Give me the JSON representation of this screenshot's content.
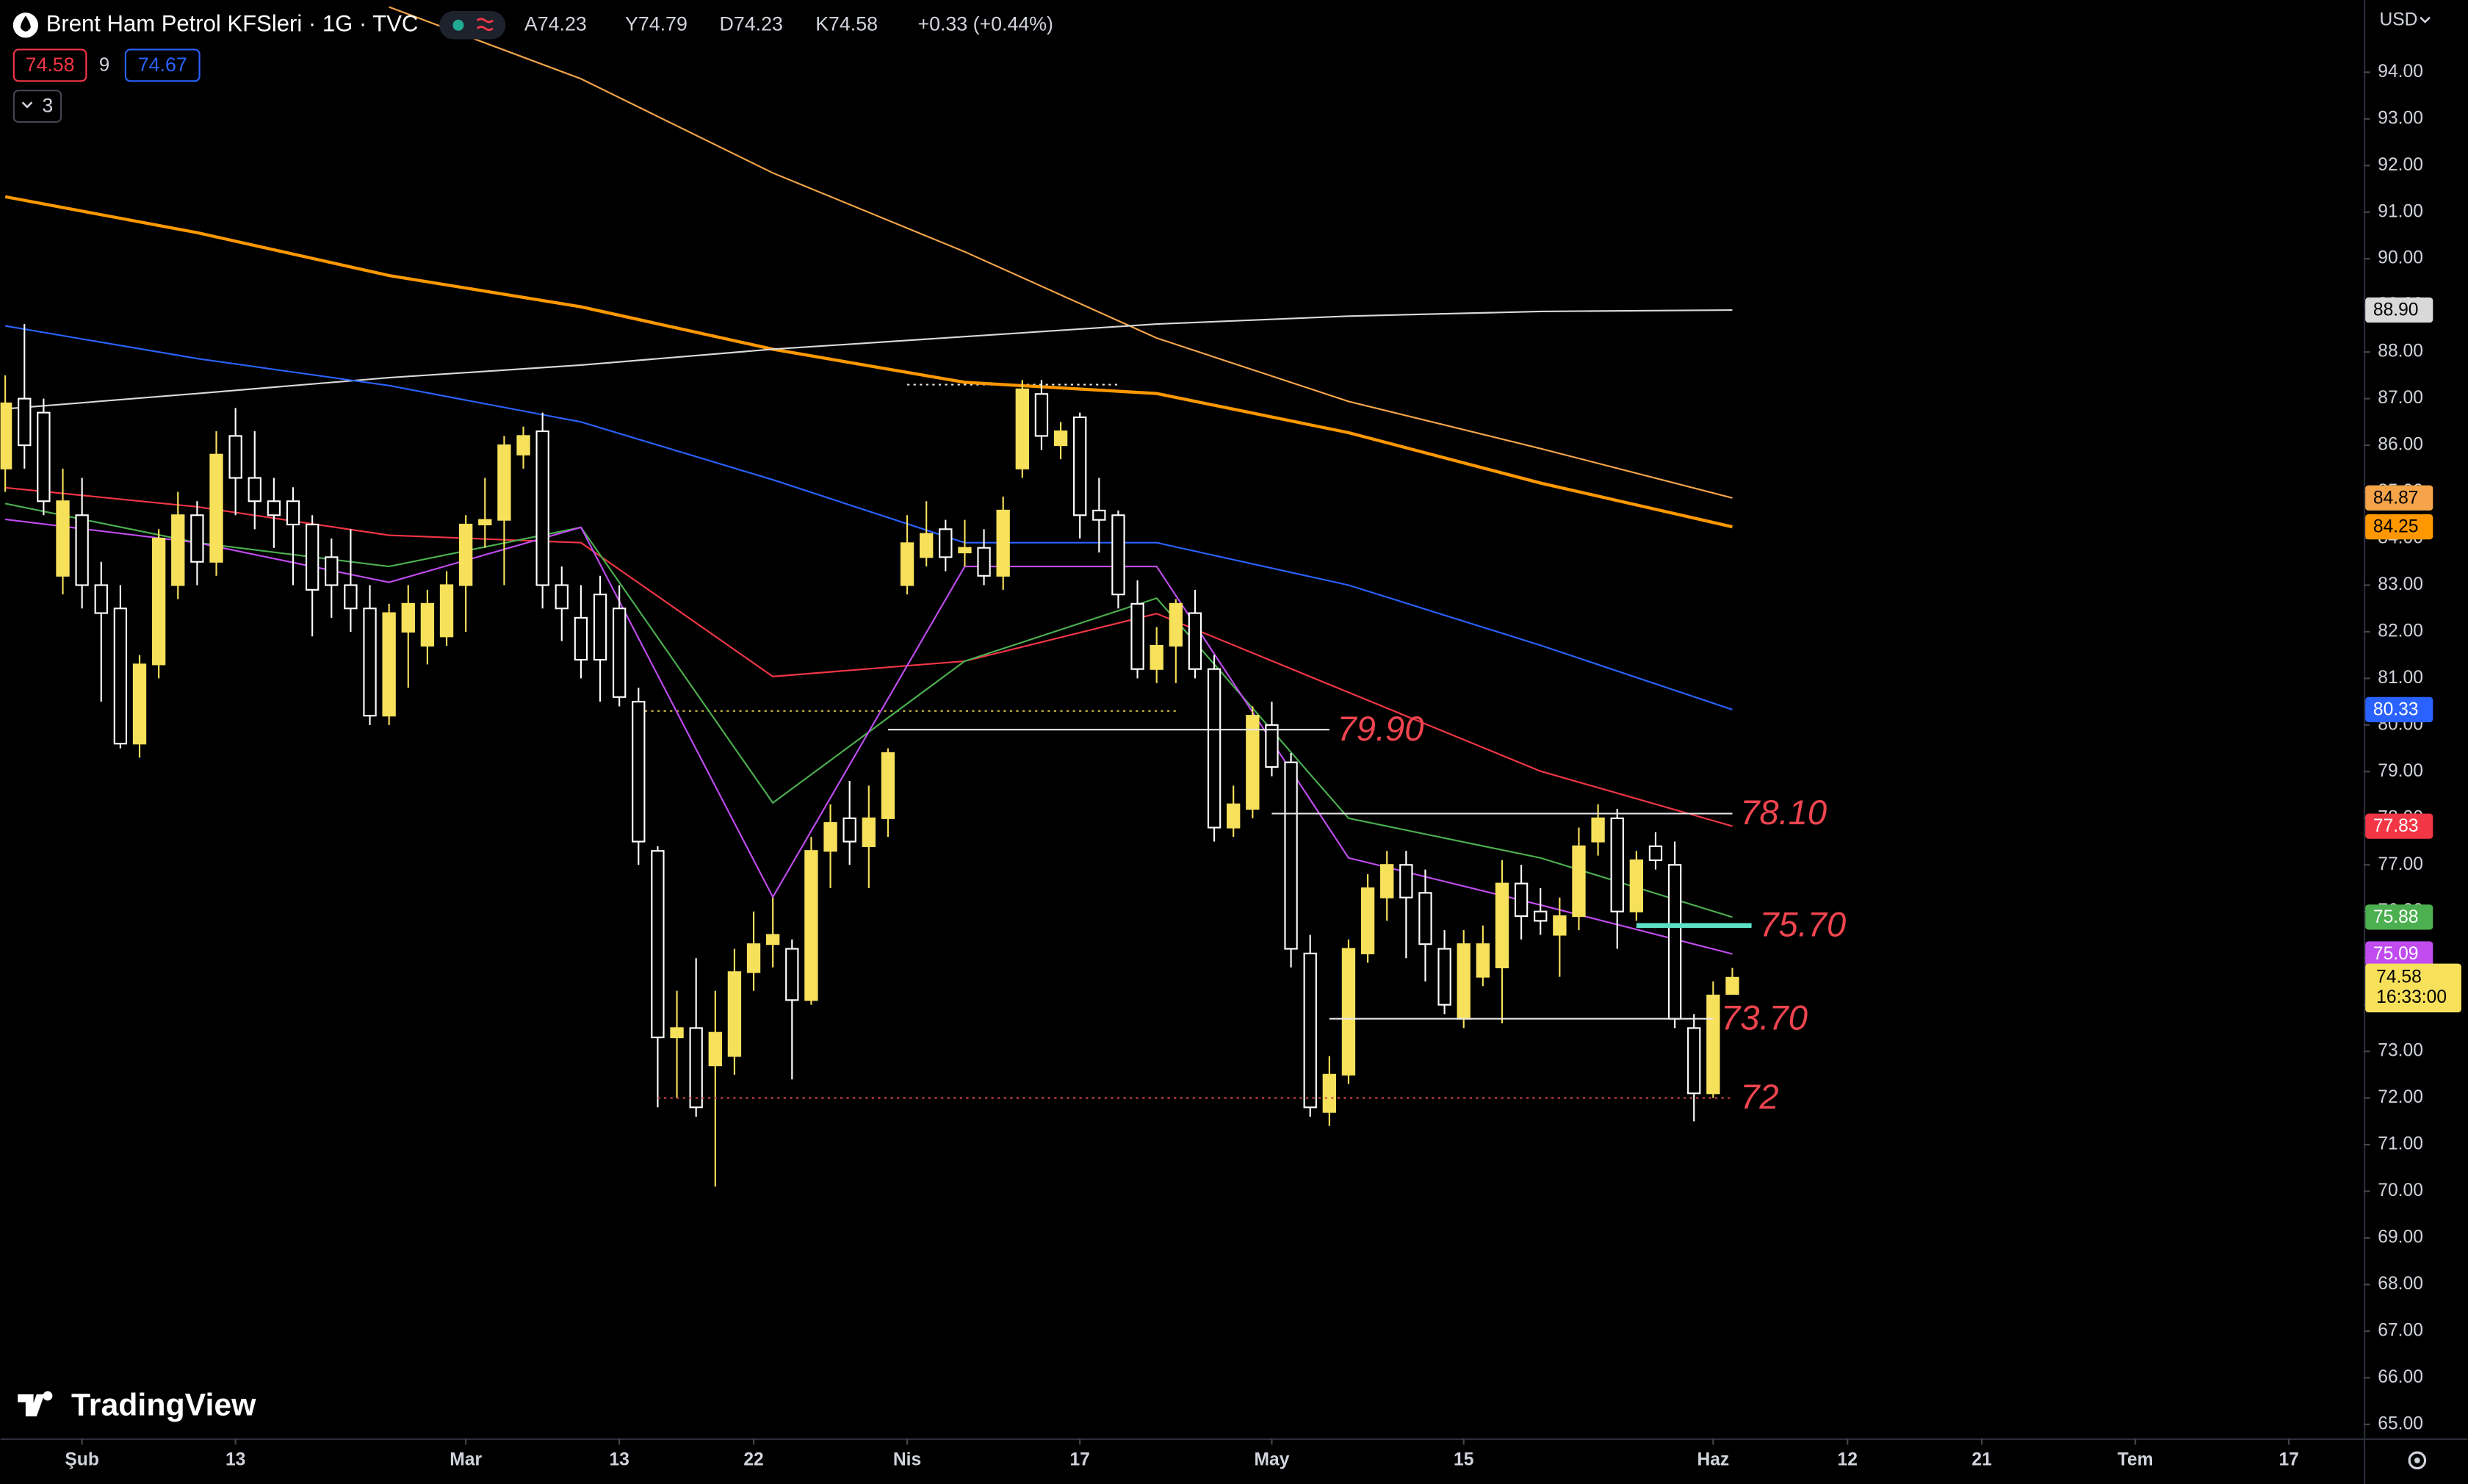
{
  "toolbar": {
    "title": "Brent Ham Petrol KFSleri · 1G · TVC",
    "ohlc": [
      "A74.23",
      "Y74.79",
      "D74.23",
      "K74.58",
      "+0.33 (+0.44%)"
    ],
    "price_box_1": "74.58",
    "period": "9",
    "price_box_2": "74.67",
    "indicator_count": "3",
    "currency": "USD",
    "logo": "TradingView"
  },
  "chart_data": {
    "type": "candlestick",
    "title": "Brent Ham Petrol KFSleri · 1G · TVC",
    "up_color": "#f7e15b",
    "down_color": "#ffffff",
    "x": [
      0,
      1,
      2,
      3,
      4,
      5,
      6,
      7,
      8,
      9,
      10,
      11,
      12,
      13,
      14,
      15,
      16,
      17,
      18,
      19,
      20,
      21,
      22,
      23,
      24,
      25,
      26,
      27,
      28,
      29,
      30,
      31,
      32,
      33,
      34,
      35,
      36,
      37,
      38,
      39,
      40,
      41,
      42,
      43,
      44,
      45,
      46,
      47,
      48,
      49,
      50,
      51,
      52,
      53,
      54,
      55,
      56,
      57,
      58,
      59,
      60,
      61,
      62,
      63,
      64,
      65,
      66,
      67,
      68,
      69,
      70,
      71,
      72,
      73,
      74,
      75,
      76,
      77,
      78,
      79,
      80,
      81,
      82,
      83,
      84,
      85,
      86,
      87,
      88,
      89,
      90
    ],
    "open": [
      85.5,
      87.0,
      86.7,
      83.2,
      84.5,
      83.0,
      82.5,
      79.6,
      81.3,
      83.0,
      84.5,
      83.5,
      86.2,
      85.3,
      84.8,
      84.8,
      84.3,
      83.6,
      83.0,
      82.5,
      80.2,
      82.0,
      81.7,
      81.9,
      83.0,
      84.3,
      84.4,
      85.8,
      86.3,
      83.0,
      82.3,
      82.8,
      82.5,
      80.5,
      77.3,
      73.3,
      73.5,
      72.7,
      72.9,
      74.7,
      75.3,
      75.2,
      74.1,
      77.3,
      78.0,
      77.4,
      78.0,
      83.0,
      83.6,
      84.2,
      83.7,
      83.8,
      83.2,
      85.5,
      87.1,
      86.0,
      86.6,
      84.6,
      84.5,
      82.6,
      81.2,
      81.7,
      82.4,
      81.2,
      77.8,
      78.2,
      80.0,
      79.2,
      75.1,
      71.7,
      72.5,
      75.1,
      76.3,
      77.0,
      76.4,
      75.2,
      73.7,
      74.6,
      74.8,
      76.6,
      76.0,
      75.5,
      75.9,
      77.5,
      78.0,
      76.0,
      77.4,
      77.0,
      73.5,
      72.1,
      74.23
    ],
    "high": [
      87.5,
      88.6,
      87.0,
      85.5,
      85.3,
      83.5,
      83.0,
      81.5,
      84.2,
      85.0,
      84.8,
      86.3,
      86.8,
      86.3,
      85.3,
      85.1,
      84.5,
      84.0,
      84.2,
      83.0,
      82.6,
      83.0,
      82.9,
      83.3,
      84.5,
      85.3,
      86.2,
      86.4,
      86.7,
      83.4,
      83.0,
      83.2,
      83.0,
      80.8,
      77.4,
      74.3,
      75.0,
      74.3,
      75.2,
      76.0,
      76.3,
      75.4,
      77.6,
      78.3,
      78.8,
      78.7,
      79.5,
      84.5,
      84.8,
      84.4,
      84.4,
      84.2,
      84.9,
      87.4,
      87.4,
      86.5,
      86.7,
      85.3,
      84.6,
      83.1,
      82.1,
      82.7,
      82.9,
      81.5,
      78.7,
      80.4,
      80.5,
      79.4,
      75.5,
      72.9,
      75.4,
      76.8,
      77.3,
      77.3,
      76.9,
      75.6,
      75.6,
      75.7,
      77.1,
      77.0,
      76.5,
      76.3,
      77.8,
      78.3,
      78.2,
      77.3,
      77.7,
      77.5,
      73.8,
      74.5,
      74.79
    ],
    "low": [
      85.0,
      85.5,
      84.5,
      82.8,
      82.5,
      80.5,
      79.5,
      79.3,
      81.0,
      82.7,
      83.0,
      83.2,
      84.5,
      84.2,
      83.8,
      83.0,
      81.9,
      82.3,
      82.0,
      80.0,
      80.0,
      80.8,
      81.3,
      81.7,
      82.0,
      83.8,
      83.0,
      85.5,
      82.5,
      81.8,
      81.0,
      80.5,
      80.4,
      77.0,
      71.8,
      72.0,
      71.6,
      70.1,
      72.5,
      74.3,
      74.8,
      72.4,
      74.0,
      76.5,
      77.0,
      76.5,
      77.6,
      82.8,
      83.4,
      83.3,
      83.4,
      83.0,
      82.9,
      85.3,
      85.9,
      85.7,
      84.0,
      83.7,
      82.5,
      81.0,
      80.9,
      80.9,
      81.0,
      77.5,
      77.6,
      78.0,
      78.9,
      74.8,
      71.6,
      71.4,
      72.3,
      74.9,
      75.8,
      75.0,
      74.5,
      73.8,
      73.5,
      74.4,
      73.6,
      75.4,
      75.5,
      74.6,
      75.6,
      77.2,
      75.2,
      75.8,
      76.9,
      73.5,
      71.5,
      72.0,
      74.23
    ],
    "close": [
      86.9,
      86.0,
      84.8,
      84.8,
      83.0,
      82.4,
      79.6,
      81.3,
      84.0,
      84.5,
      83.5,
      85.8,
      85.3,
      84.8,
      84.5,
      84.3,
      82.9,
      83.0,
      82.5,
      80.2,
      82.4,
      82.6,
      82.6,
      83.0,
      84.3,
      84.4,
      86.0,
      86.2,
      83.0,
      82.5,
      81.4,
      81.4,
      80.6,
      77.5,
      73.3,
      73.5,
      71.8,
      73.4,
      74.7,
      75.3,
      75.5,
      74.1,
      77.3,
      77.9,
      77.5,
      78.0,
      79.4,
      83.9,
      84.1,
      83.6,
      83.8,
      83.2,
      84.6,
      87.2,
      86.2,
      86.3,
      84.5,
      84.4,
      82.8,
      81.2,
      81.7,
      82.6,
      81.2,
      77.8,
      78.3,
      80.2,
      79.1,
      75.2,
      71.8,
      72.5,
      75.2,
      76.5,
      77.0,
      76.3,
      75.3,
      74.0,
      75.3,
      75.3,
      76.6,
      75.9,
      75.8,
      75.9,
      77.4,
      78.0,
      76.0,
      77.1,
      77.1,
      73.7,
      72.1,
      74.2,
      74.58
    ],
    "last_label": "74.58",
    "countdown": "16:33:00",
    "overlays": [
      {
        "color": "#f5a44a",
        "width": 1,
        "x": [
          20,
          30,
          40,
          50,
          60,
          70,
          80,
          90
        ],
        "values": [
          95.4,
          93.86,
          91.84,
          90.15,
          88.3,
          86.94,
          85.93,
          84.87
        ],
        "last_label": "84.87"
      },
      {
        "color": "#ff9800",
        "width": 2,
        "x": [
          0,
          10,
          20,
          30,
          40,
          50,
          60,
          70,
          80,
          90
        ],
        "values": [
          91.33,
          90.56,
          89.64,
          88.97,
          88.06,
          87.35,
          87.11,
          86.27,
          85.19,
          84.25
        ],
        "last_label": "84.25"
      },
      {
        "color": "#d9d9d9",
        "width": 1,
        "x": [
          0,
          10,
          20,
          30,
          40,
          50,
          60,
          70,
          80,
          90
        ],
        "values": [
          86.78,
          87.11,
          87.45,
          87.72,
          88.06,
          88.33,
          88.6,
          88.77,
          88.87,
          88.9
        ],
        "last_label": "88.90"
      },
      {
        "color": "#2962ff",
        "width": 1,
        "x": [
          0,
          10,
          20,
          30,
          40,
          50,
          60,
          70,
          80,
          90
        ],
        "values": [
          88.56,
          87.86,
          87.28,
          86.5,
          85.26,
          83.91,
          83.91,
          83.0,
          81.71,
          80.33
        ],
        "last_label": "80.33"
      },
      {
        "color": "#f23645",
        "width": 1,
        "x": [
          0,
          10,
          20,
          30,
          40,
          50,
          60,
          70,
          80,
          90
        ],
        "values": [
          85.09,
          84.68,
          84.07,
          83.91,
          81.04,
          81.37,
          82.39,
          80.7,
          79.01,
          77.83
        ],
        "last_label": "77.83"
      },
      {
        "color": "#4caf50",
        "width": 1,
        "x": [
          0,
          10,
          20,
          30,
          40,
          50,
          60,
          70,
          80,
          90
        ],
        "values": [
          84.75,
          83.91,
          83.4,
          84.24,
          78.33,
          81.37,
          82.72,
          78.0,
          77.15,
          75.88
        ],
        "last_label": "75.88"
      },
      {
        "color": "#c04cf0",
        "width": 1,
        "x": [
          0,
          10,
          20,
          30,
          40,
          50,
          60,
          70,
          80,
          90
        ],
        "values": [
          84.41,
          83.91,
          83.06,
          84.24,
          76.31,
          83.4,
          83.4,
          77.15,
          76.14,
          75.09
        ],
        "last_label": "75.09"
      }
    ],
    "levels": [
      {
        "value": 79.9,
        "label": "79.90",
        "x": [
          46,
          69
        ],
        "color": "#e6e6e6",
        "style": "solid"
      },
      {
        "value": 78.1,
        "label": "78.10",
        "x": [
          66,
          90
        ],
        "color": "#e6e6e6",
        "style": "solid"
      },
      {
        "value": 75.7,
        "label": "75.70",
        "x": [
          85,
          91
        ],
        "color": "#5ce1c6",
        "style": "thick"
      },
      {
        "value": 73.7,
        "label": "73.70",
        "x": [
          69,
          89
        ],
        "color": "#e6e6e6",
        "style": "solid"
      },
      {
        "value": 72,
        "x": [
          34,
          90
        ],
        "color": "#d0454f",
        "style": "dotted"
      }
    ],
    "level_label_color": "#f0454f",
    "guides": [
      {
        "value": 80.3,
        "x": [
          33,
          61
        ],
        "color": "#c8b84a",
        "style": "dotted"
      },
      {
        "value": 87.3,
        "x": [
          47,
          58
        ],
        "color": "#e6e6e6",
        "style": "dotted"
      }
    ],
    "xlim": [
      -0.25,
      122.9
    ],
    "xticks": [
      {
        "value": 4,
        "label": "Şub"
      },
      {
        "value": 12,
        "label": "13"
      },
      {
        "value": 24,
        "label": "Mar"
      },
      {
        "value": 32,
        "label": "13"
      },
      {
        "value": 39,
        "label": "22"
      },
      {
        "value": 47,
        "label": "Nis"
      },
      {
        "value": 56,
        "label": "17"
      },
      {
        "value": 66,
        "label": "May"
      },
      {
        "value": 76,
        "label": "15"
      },
      {
        "value": 89,
        "label": "Haz"
      },
      {
        "value": 96,
        "label": "12"
      },
      {
        "value": 103,
        "label": "21"
      },
      {
        "value": 111,
        "label": "Tem"
      },
      {
        "value": 119,
        "label": "17"
      }
    ],
    "ylim": [
      64.7,
      95.55
    ],
    "yticks": [
      {
        "value": 65,
        "label": "65.00"
      },
      {
        "value": 66,
        "label": "66.00"
      },
      {
        "value": 67,
        "label": "67.00"
      },
      {
        "value": 68,
        "label": "68.00"
      },
      {
        "value": 69,
        "label": "69.00"
      },
      {
        "value": 70,
        "label": "70.00"
      },
      {
        "value": 71,
        "label": "71.00"
      },
      {
        "value": 72,
        "label": "72.00"
      },
      {
        "value": 73,
        "label": "73.00"
      },
      {
        "value": 74,
        "label": "74.00"
      },
      {
        "value": 75,
        "label": "75.00"
      },
      {
        "value": 76,
        "label": "76.00"
      },
      {
        "value": 77,
        "label": "77.00"
      },
      {
        "value": 78,
        "label": "78.00"
      },
      {
        "value": 79,
        "label": "79.00"
      },
      {
        "value": 80,
        "label": "80.00"
      },
      {
        "value": 81,
        "label": "81.00"
      },
      {
        "value": 82,
        "label": "82.00"
      },
      {
        "value": 83,
        "label": "83.00"
      },
      {
        "value": 84,
        "label": "84.00"
      },
      {
        "value": 85,
        "label": "85.00"
      },
      {
        "value": 86,
        "label": "86.00"
      },
      {
        "value": 87,
        "label": "87.00"
      },
      {
        "value": 88,
        "label": "88.00"
      },
      {
        "value": 89,
        "label": "89.00"
      },
      {
        "value": 90,
        "label": "90.00"
      },
      {
        "value": 91,
        "label": "91.00"
      },
      {
        "value": 92,
        "label": "92.00"
      },
      {
        "value": 93,
        "label": "93.00"
      },
      {
        "value": 94,
        "label": "94.00"
      }
    ],
    "grid": false
  }
}
